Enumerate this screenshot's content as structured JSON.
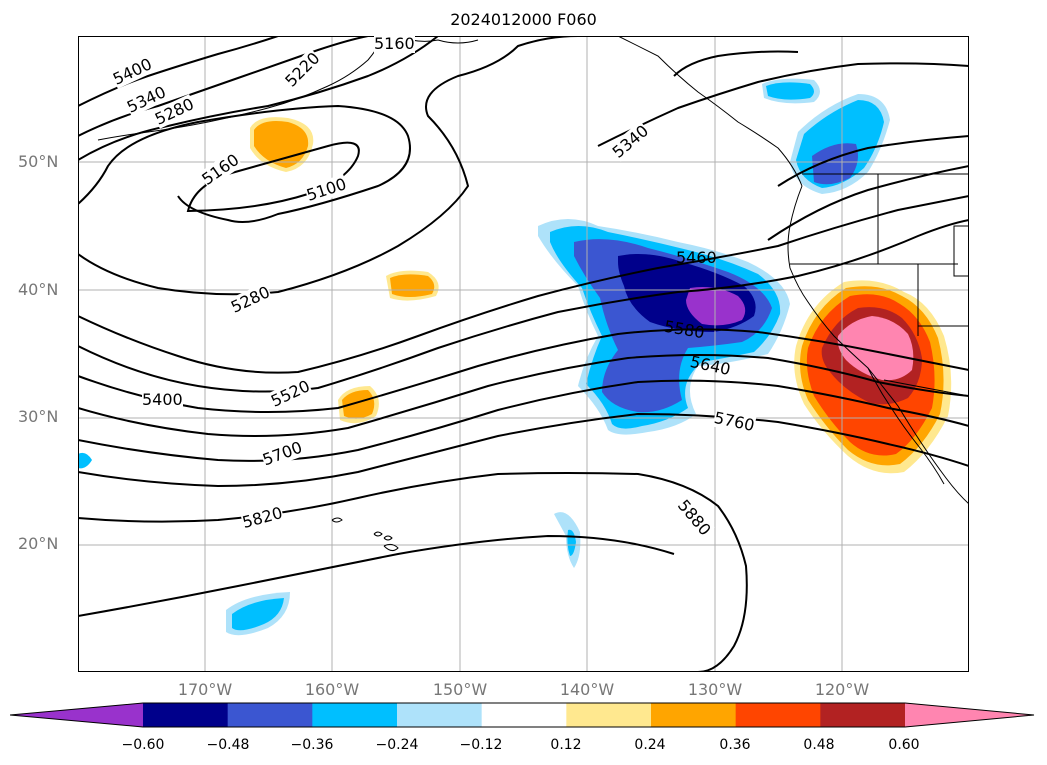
{
  "title": "2024012000 F060",
  "map": {
    "lat_labels": [
      {
        "text": "50°N",
        "lat": 50
      },
      {
        "text": "40°N",
        "lat": 40
      },
      {
        "text": "30°N",
        "lat": 30
      },
      {
        "text": "20°N",
        "lat": 20
      }
    ],
    "lon_labels": [
      {
        "text": "170°W",
        "lon": -170
      },
      {
        "text": "160°W",
        "lon": -160
      },
      {
        "text": "150°W",
        "lon": -150
      },
      {
        "text": "140°W",
        "lon": -140
      },
      {
        "text": "130°W",
        "lon": -130
      },
      {
        "text": "120°W",
        "lon": -120
      }
    ],
    "contour_labels": [
      "5400",
      "5340",
      "5280",
      "5220",
      "5160",
      "5100",
      "5160",
      "5280",
      "5400",
      "5520",
      "5700",
      "5820",
      "5340",
      "5460",
      "5580",
      "5640",
      "5760",
      "5880"
    ],
    "colors": {
      "grid": "#b0b0b0",
      "contour": "#000000",
      "coastline": "#000000"
    }
  },
  "colorbar": {
    "bins": [
      {
        "color": "#9932cc"
      },
      {
        "color": "#00008b"
      },
      {
        "color": "#3b56d1"
      },
      {
        "color": "#00bfff"
      },
      {
        "color": "#aee2fa"
      },
      {
        "color": "#ffffff"
      },
      {
        "color": "#ffe88f"
      },
      {
        "color": "#ffa500"
      },
      {
        "color": "#ff4500"
      },
      {
        "color": "#b22222"
      },
      {
        "color": "#ff85b0"
      }
    ],
    "tick_labels": [
      "−0.60",
      "−0.48",
      "−0.36",
      "−0.24",
      "−0.12",
      "0.12",
      "0.24",
      "0.36",
      "0.48",
      "0.60"
    ]
  }
}
